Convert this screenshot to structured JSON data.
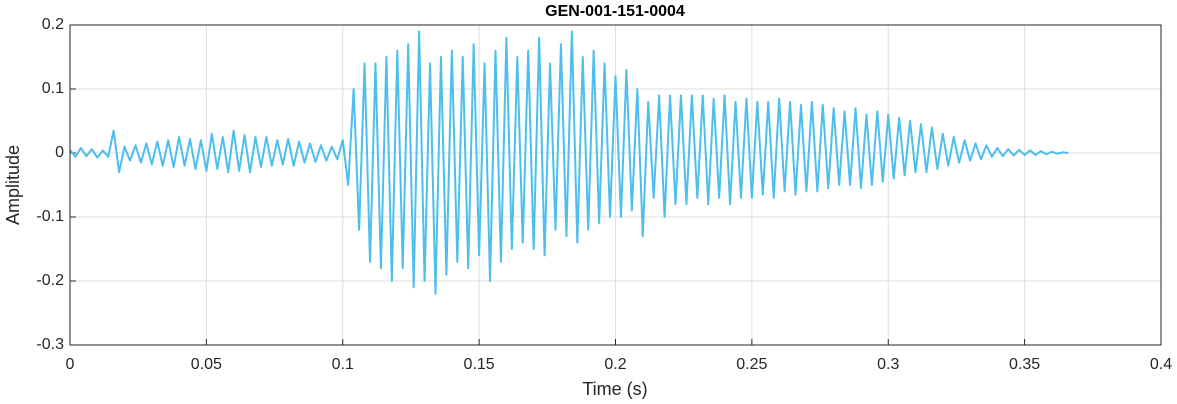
{
  "chart_data": {
    "type": "line",
    "title": "GEN-001-151-0004",
    "xlabel": "Time (s)",
    "ylabel": "Amplitude",
    "color": "#4DBEEE",
    "grid": true,
    "xlim": [
      0,
      0.4
    ],
    "xticks": [
      0,
      0.05,
      0.1,
      0.15,
      0.2,
      0.25,
      0.3,
      0.35,
      0.4
    ],
    "ylim": [
      -0.3,
      0.2
    ],
    "yticks": [
      -0.3,
      -0.2,
      -0.1,
      0,
      0.1,
      0.2
    ],
    "x": [
      0,
      0.002,
      0.004,
      0.006,
      0.008,
      0.01,
      0.012,
      0.014,
      0.016,
      0.018,
      0.02,
      0.022,
      0.024,
      0.026,
      0.028,
      0.03,
      0.032,
      0.034,
      0.036,
      0.038,
      0.04,
      0.042,
      0.044,
      0.046,
      0.048,
      0.05,
      0.052,
      0.054,
      0.056,
      0.058,
      0.06,
      0.062,
      0.064,
      0.066,
      0.068,
      0.07,
      0.072,
      0.074,
      0.076,
      0.078,
      0.08,
      0.082,
      0.084,
      0.086,
      0.088,
      0.09,
      0.092,
      0.094,
      0.096,
      0.098,
      0.1,
      0.102,
      0.104,
      0.106,
      0.108,
      0.11,
      0.112,
      0.114,
      0.116,
      0.118,
      0.12,
      0.122,
      0.124,
      0.126,
      0.128,
      0.13,
      0.132,
      0.134,
      0.136,
      0.138,
      0.14,
      0.142,
      0.144,
      0.146,
      0.148,
      0.15,
      0.152,
      0.154,
      0.156,
      0.158,
      0.16,
      0.162,
      0.164,
      0.166,
      0.168,
      0.17,
      0.172,
      0.174,
      0.176,
      0.178,
      0.18,
      0.182,
      0.184,
      0.186,
      0.188,
      0.19,
      0.192,
      0.194,
      0.196,
      0.198,
      0.2,
      0.202,
      0.204,
      0.206,
      0.208,
      0.21,
      0.212,
      0.214,
      0.216,
      0.218,
      0.22,
      0.222,
      0.224,
      0.226,
      0.228,
      0.23,
      0.232,
      0.234,
      0.236,
      0.238,
      0.24,
      0.242,
      0.244,
      0.246,
      0.248,
      0.25,
      0.252,
      0.254,
      0.256,
      0.258,
      0.26,
      0.262,
      0.264,
      0.266,
      0.268,
      0.27,
      0.272,
      0.274,
      0.276,
      0.278,
      0.28,
      0.282,
      0.284,
      0.286,
      0.288,
      0.29,
      0.292,
      0.294,
      0.296,
      0.298,
      0.3,
      0.302,
      0.304,
      0.306,
      0.308,
      0.31,
      0.312,
      0.314,
      0.316,
      0.318,
      0.32,
      0.322,
      0.324,
      0.326,
      0.328,
      0.33,
      0.332,
      0.334,
      0.336,
      0.338,
      0.34,
      0.342,
      0.344,
      0.346,
      0.348,
      0.35,
      0.352,
      0.354,
      0.356,
      0.358,
      0.36,
      0.362,
      0.364,
      0.366
    ],
    "values": [
      0.005,
      -0.006,
      0.008,
      -0.005,
      0.006,
      -0.007,
      0.004,
      -0.006,
      0.035,
      -0.03,
      0.01,
      -0.012,
      0.012,
      -0.015,
      0.015,
      -0.018,
      0.018,
      -0.02,
      0.02,
      -0.022,
      0.025,
      -0.02,
      0.022,
      -0.025,
      0.02,
      -0.028,
      0.03,
      -0.025,
      0.025,
      -0.03,
      0.035,
      -0.028,
      0.028,
      -0.03,
      0.025,
      -0.022,
      0.025,
      -0.02,
      0.02,
      -0.018,
      0.022,
      -0.02,
      0.018,
      -0.015,
      0.015,
      -0.014,
      0.012,
      -0.012,
      0.01,
      -0.01,
      0.02,
      -0.05,
      0.1,
      -0.12,
      0.14,
      -0.17,
      0.14,
      -0.18,
      0.15,
      -0.2,
      0.16,
      -0.18,
      0.17,
      -0.21,
      0.19,
      -0.2,
      0.14,
      -0.22,
      0.15,
      -0.19,
      0.16,
      -0.17,
      0.15,
      -0.18,
      0.17,
      -0.16,
      0.14,
      -0.2,
      0.16,
      -0.17,
      0.18,
      -0.15,
      0.15,
      -0.14,
      0.16,
      -0.15,
      0.18,
      -0.16,
      0.14,
      -0.12,
      0.17,
      -0.13,
      0.19,
      -0.14,
      0.15,
      -0.12,
      0.16,
      -0.11,
      0.14,
      -0.1,
      0.12,
      -0.1,
      0.13,
      -0.09,
      0.1,
      -0.13,
      0.08,
      -0.07,
      0.09,
      -0.1,
      0.09,
      -0.08,
      0.09,
      -0.08,
      0.09,
      -0.07,
      0.09,
      -0.08,
      0.085,
      -0.07,
      0.09,
      -0.08,
      0.08,
      -0.07,
      0.085,
      -0.07,
      0.08,
      -0.065,
      0.08,
      -0.07,
      0.085,
      -0.06,
      0.08,
      -0.065,
      0.075,
      -0.06,
      0.08,
      -0.06,
      0.075,
      -0.055,
      0.07,
      -0.05,
      0.065,
      -0.05,
      0.07,
      -0.055,
      0.06,
      -0.05,
      0.065,
      -0.045,
      0.06,
      -0.04,
      0.055,
      -0.035,
      0.05,
      -0.03,
      0.045,
      -0.03,
      0.04,
      -0.025,
      0.03,
      -0.02,
      0.025,
      -0.015,
      0.02,
      -0.012,
      0.015,
      -0.01,
      0.012,
      -0.006,
      0.008,
      -0.005,
      0.006,
      -0.004,
      0.005,
      -0.003,
      0.004,
      -0.003,
      0.003,
      -0.002,
      0.002,
      -0.001,
      0.001,
      0
    ]
  }
}
